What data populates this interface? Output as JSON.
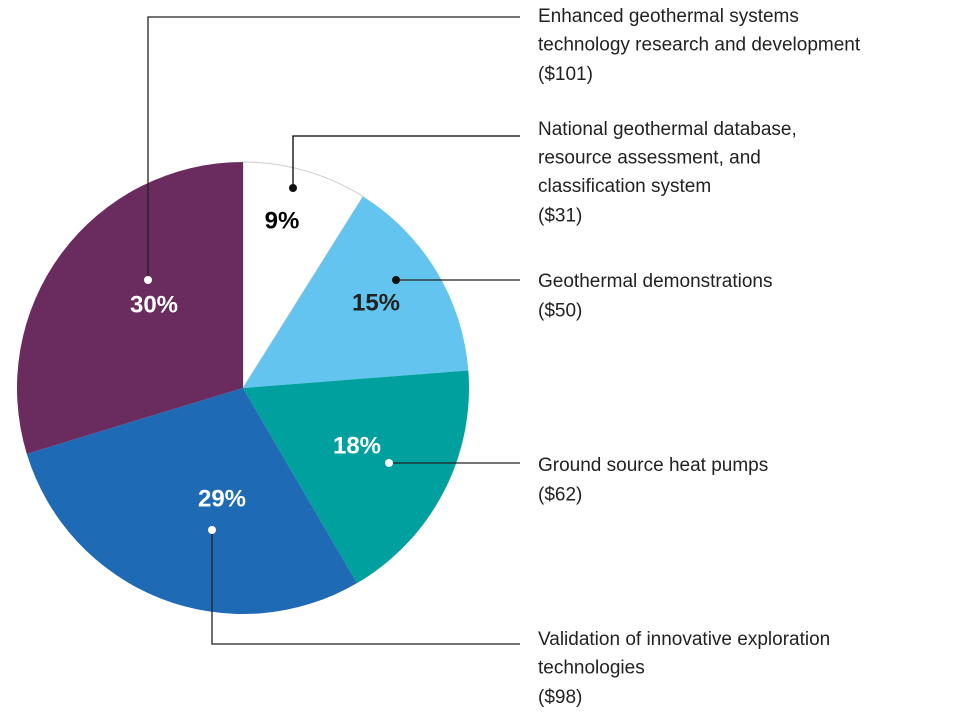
{
  "chart_data": {
    "type": "pie",
    "categories": [
      [
        "National geothermal database,",
        "resource assessment, and",
        "classification system"
      ],
      [
        "Geothermal demonstrations"
      ],
      [
        "Ground source heat pumps"
      ],
      [
        "Validation of innovative exploration",
        "technologies"
      ],
      [
        "Enhanced geothermal systems",
        "technology research and development"
      ]
    ],
    "amount_labels": [
      "($31)",
      "($50)",
      "($62)",
      "($98)",
      "($101)"
    ],
    "values": [
      9,
      15,
      18,
      29,
      30
    ],
    "value_labels": [
      "9%",
      "15%",
      "18%",
      "29%",
      "30%"
    ],
    "colors": [
      "#ffffff",
      "#63c5ef",
      "#00a09f",
      "#1f6ab4",
      "#6a2c5f"
    ],
    "label_colors": [
      "#000000",
      "#222222",
      "#ffffff",
      "#ffffff",
      "#ffffff"
    ]
  }
}
